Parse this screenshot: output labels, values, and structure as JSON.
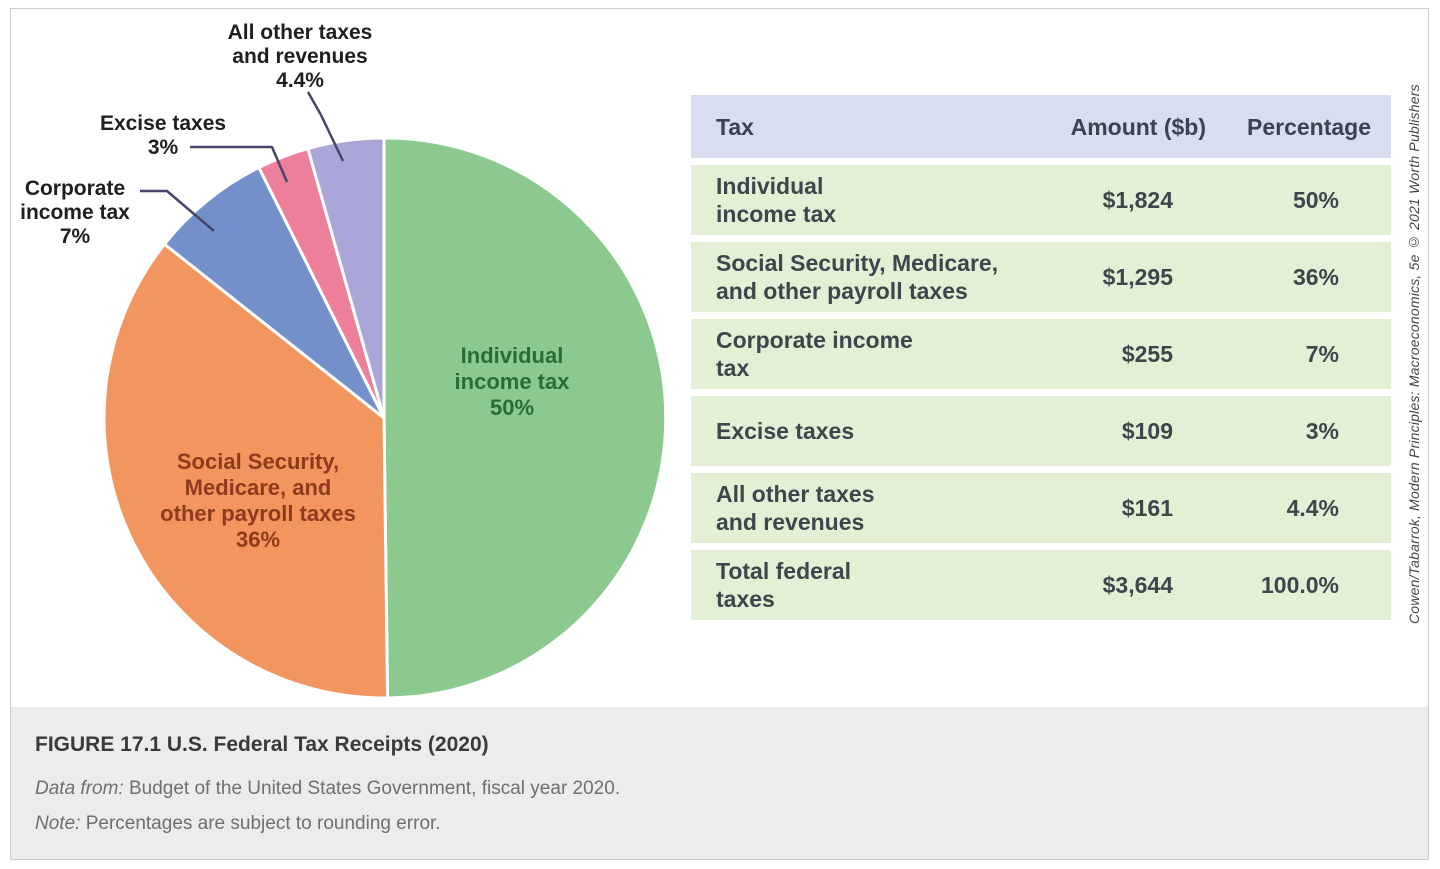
{
  "figure": {
    "title": "FIGURE 17.1 U.S. Federal Tax Receipts (2020)",
    "source_label": "Data from:",
    "source_text": " Budget of the United States Government, fiscal year 2020.",
    "note_label": "Note:",
    "note_text": " Percentages are subject to rounding error.",
    "credit_prefix": "Cowen/Tabarrok, ",
    "credit_title": "Modern Principles: Macroeconomics,",
    "credit_suffix": " 5e © 2021 Worth Publishers"
  },
  "chart_data": {
    "type": "pie",
    "title": "U.S. Federal Tax Receipts (2020)",
    "categories": [
      "Individual income tax",
      "Social Security, Medicare, and other payroll taxes",
      "Corporate income tax",
      "Excise taxes",
      "All other taxes and revenues"
    ],
    "values": [
      50,
      36,
      7,
      3,
      4.4
    ],
    "amounts_billions": [
      1824,
      1295,
      255,
      109,
      161
    ],
    "total": {
      "label": "Total federal taxes",
      "amount_billions": 3644,
      "percentage": 100.0
    },
    "colors": [
      "#8cc98e",
      "#f2955f",
      "#7390cb",
      "#ed7f9b",
      "#aaa6d8"
    ],
    "start_angle_deg": 0,
    "direction": "clockwise",
    "legend_position": "labels-on-chart",
    "note": "Percentages are subject to rounding error."
  },
  "pie_labels": {
    "individual": "Individual\nincome tax\n50%",
    "social": "Social Security,\nMedicare, and\nother payroll taxes\n36%",
    "corporate": "Corporate\nincome tax\n7%",
    "excise": "Excise taxes\n3%",
    "other": "All other taxes\nand revenues\n4.4%"
  },
  "table": {
    "headers": [
      "Tax",
      "Amount ($b)",
      "Percentage"
    ],
    "rows": [
      {
        "tax": "Individual\nincome tax",
        "amount": "$1,824",
        "pct": "50%"
      },
      {
        "tax": "Social Security, Medicare,\nand other payroll taxes",
        "amount": "$1,295",
        "pct": "36%"
      },
      {
        "tax": "Corporate income\ntax",
        "amount": "$255",
        "pct": "7%"
      },
      {
        "tax": "Excise taxes",
        "amount": "$109",
        "pct": "3%"
      },
      {
        "tax": "All other taxes\nand revenues",
        "amount": "$161",
        "pct": "4.4%"
      },
      {
        "tax": "Total federal\ntaxes",
        "amount": "$3,644",
        "pct": "100.0%"
      }
    ]
  },
  "palette": {
    "table_header_bg": "#d8def0",
    "table_row_bg": "#e4f0d6",
    "caption_bg": "#ececec",
    "leader_line": "#46466b",
    "individual_label_color": "#2b6b37",
    "social_label_color": "#8e3b1d"
  }
}
